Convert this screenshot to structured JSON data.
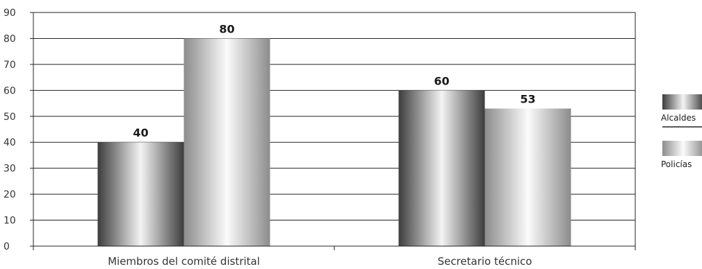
{
  "chart_data": {
    "type": "bar",
    "categories": [
      "Miembros del comité distrital",
      "Secretario técnico"
    ],
    "series": [
      {
        "name": "Alcaldes",
        "values": [
          40,
          60
        ],
        "style": "dark-gradient"
      },
      {
        "name": "Policías",
        "values": [
          80,
          53
        ],
        "style": "light-gradient"
      }
    ],
    "ylim": [
      0,
      90
    ],
    "yticks": [
      0,
      10,
      20,
      30,
      40,
      50,
      60,
      70,
      80,
      90
    ],
    "grid": true,
    "legend_position": "right",
    "colors": {
      "dark_edge": "#3c3c3c",
      "dark_center": "#f4f4f4",
      "light_edge": "#8c8c8c",
      "light_center": "#fbfbfb",
      "grid": "#222222"
    }
  }
}
